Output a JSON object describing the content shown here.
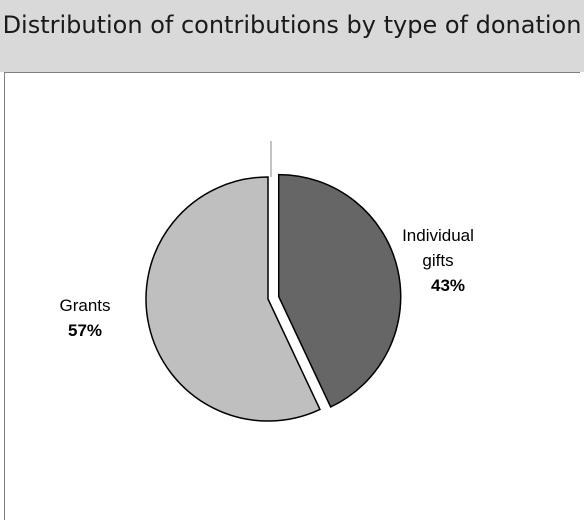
{
  "chart_data": {
    "type": "pie",
    "title": "Distribution of contributions by type of donation",
    "categories": [
      "Individual gifts",
      "Grants"
    ],
    "values": [
      43,
      57
    ],
    "labels": [
      {
        "name_lines": [
          "Individual",
          "gifts"
        ],
        "pct": "43%"
      },
      {
        "name_lines": [
          "Grants"
        ],
        "pct": "57%"
      }
    ],
    "colors": [
      "#666666",
      "#bfbfbf"
    ],
    "exploded": [
      "Individual gifts"
    ],
    "legend": "none"
  }
}
